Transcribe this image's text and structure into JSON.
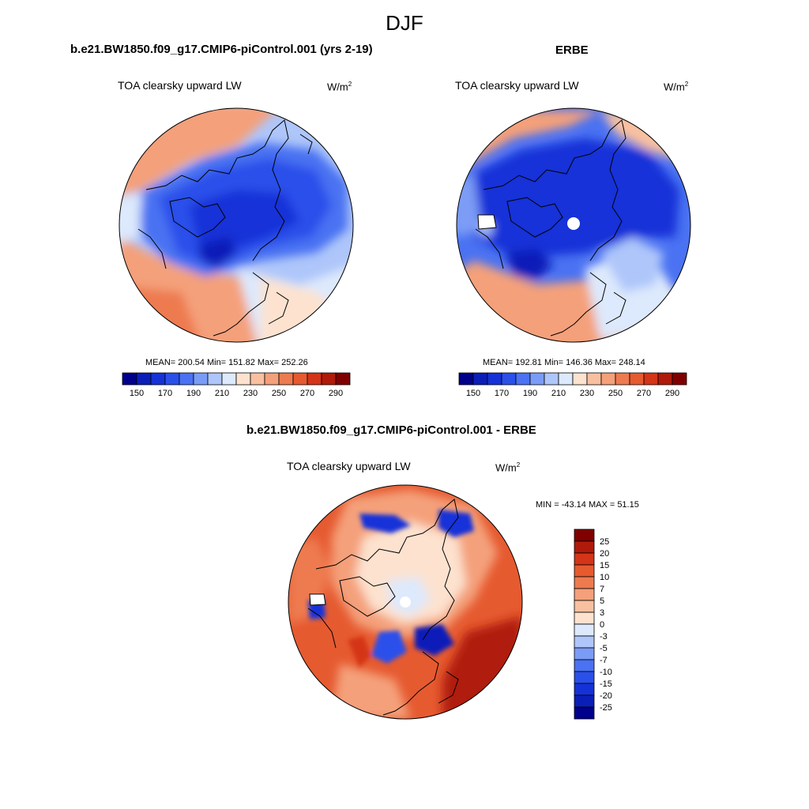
{
  "figure": {
    "season": "DJF",
    "colors": {
      "dark_blue": "#00008b",
      "dark_red": "#800000",
      "land_outline": "#000000"
    }
  },
  "panels": [
    {
      "id": "model",
      "title": "b.e21.BW1850.f09_g17.CMIP6-piControl.001 (yrs 2-19)",
      "variable": "TOA clearsky upward LW",
      "units_base": "W/m",
      "units_exp": "2",
      "stats_text": "MEAN= 200.54  Min= 151.82  Max= 252.26",
      "mean": 200.54,
      "min": 151.82,
      "max": 252.26
    },
    {
      "id": "obs",
      "title": "ERBE",
      "variable": "TOA clearsky upward LW",
      "units_base": "W/m",
      "units_exp": "2",
      "stats_text": "MEAN= 192.81  Min= 146.36  Max= 248.14",
      "mean": 192.81,
      "min": 146.36,
      "max": 248.14
    },
    {
      "id": "diff",
      "title": "b.e21.BW1850.f09_g17.CMIP6-piControl.001 - ERBE",
      "variable": "TOA clearsky upward LW",
      "units_base": "W/m",
      "units_exp": "2",
      "stats_text": "MIN = -43.14 MAX =  51.15",
      "min": -43.14,
      "max": 51.15
    }
  ],
  "colorbar_abs": {
    "labels": [
      "150",
      "170",
      "190",
      "210",
      "230",
      "250",
      "270",
      "290"
    ],
    "colors": [
      "#00008b",
      "#0a1fb8",
      "#1432d8",
      "#2a50ea",
      "#4a72f2",
      "#7b9cf6",
      "#aec6fa",
      "#dde9fc",
      "#fde2cf",
      "#f9c0a0",
      "#f4a07a",
      "#ee7a50",
      "#e65a30",
      "#d43418",
      "#b01a0a",
      "#800000"
    ]
  },
  "colorbar_diff": {
    "labels": [
      "25",
      "20",
      "15",
      "10",
      "7",
      "5",
      "3",
      "0",
      "-3",
      "-5",
      "-7",
      "-10",
      "-15",
      "-20",
      "-25"
    ],
    "colors": [
      "#800000",
      "#b01a0a",
      "#d43418",
      "#e65a30",
      "#ee7a50",
      "#f4a07a",
      "#f9c0a0",
      "#fde2cf",
      "#dde9fc",
      "#aec6fa",
      "#7b9cf6",
      "#4a72f2",
      "#2a50ea",
      "#1432d8",
      "#0a1fb8",
      "#00008b"
    ]
  }
}
